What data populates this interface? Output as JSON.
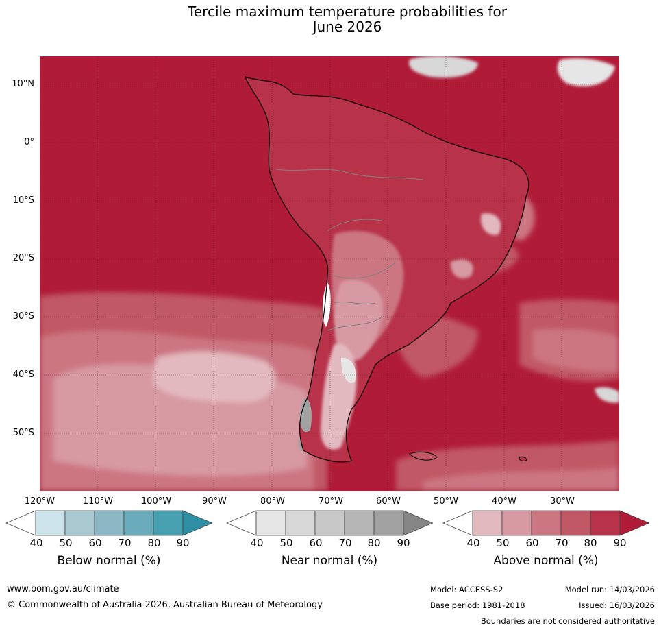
{
  "title": {
    "line1": "Tercile maximum temperature probabilities for",
    "line2": "June 2026"
  },
  "map": {
    "lat_labels": [
      "10°N",
      "0°",
      "10°S",
      "20°S",
      "30°S",
      "40°S",
      "50°S"
    ],
    "lon_labels": [
      "120°W",
      "110°W",
      "100°W",
      "90°W",
      "80°W",
      "70°W",
      "60°W",
      "50°W",
      "40°W",
      "30°W"
    ],
    "ocean_color": "#b01b37",
    "dominant_category": "Above normal",
    "dominant_probability": "90"
  },
  "colorbars": [
    {
      "title": "Below normal (%)",
      "ticks": [
        "40",
        "50",
        "60",
        "70",
        "80",
        "90"
      ],
      "colors": [
        "#ffffff",
        "#cde4ea",
        "#a8c9d0",
        "#8bb8c4",
        "#6aacbb",
        "#48a1b1",
        "#2e8fa5"
      ]
    },
    {
      "title": "Near normal (%)",
      "ticks": [
        "40",
        "50",
        "60",
        "70",
        "80",
        "90"
      ],
      "colors": [
        "#ffffff",
        "#e6e6e6",
        "#d8d8d8",
        "#c8c8c8",
        "#b6b6b6",
        "#a2a2a2",
        "#858585"
      ]
    },
    {
      "title": "Above normal (%)",
      "ticks": [
        "40",
        "50",
        "60",
        "70",
        "80",
        "90"
      ],
      "colors": [
        "#ffffff",
        "#e3b9c0",
        "#d799a2",
        "#cc7682",
        "#c15865",
        "#b8334a",
        "#b01b37"
      ]
    }
  ],
  "footer": {
    "url": "www.bom.gov.au/climate",
    "copyright": "© Commonwealth of Australia 2026, Australian Bureau of Meteorology",
    "model": "Model: ACCESS-S2",
    "model_run": "Model run: 14/03/2026",
    "base_period": "Base period: 1981-2018",
    "issued": "Issued: 16/03/2026",
    "disclaimer": "Boundaries are not considered authoritative"
  }
}
